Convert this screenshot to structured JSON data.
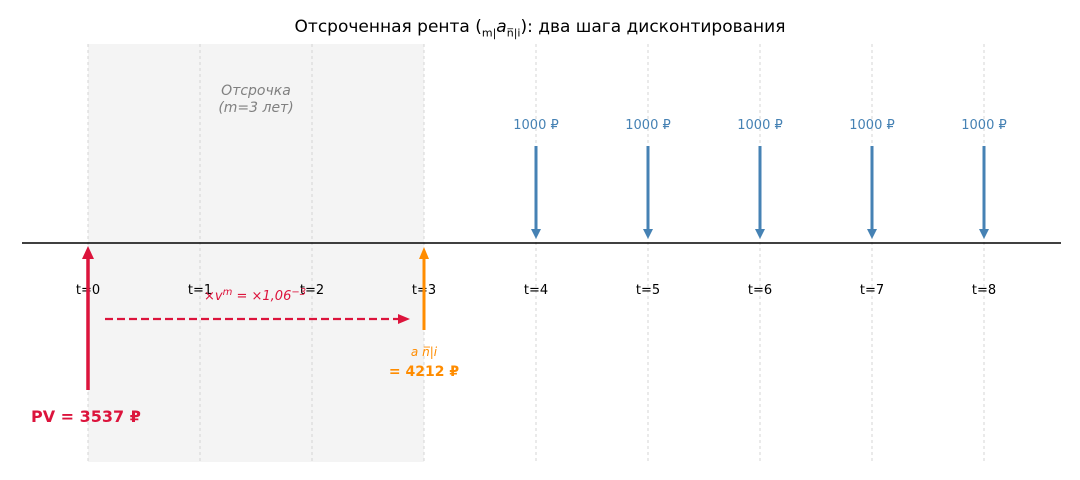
{
  "title": {
    "prefix": "Отсроченная рента (",
    "sub_m": "m|",
    "a": "a",
    "sub_n": "n̅|i",
    "suffix": "): два шага дисконтирования"
  },
  "deferral_label_line1": "Отсрочка",
  "deferral_label_line2": "(m=3 лет)",
  "discount_label": "×v^m = ×1,06^−3",
  "annuity_symbol": "a n̅|i",
  "annuity_value_label": "= 4212 ₽",
  "pv_label": "PV = 3537 ₽",
  "colors": {
    "payment": "#4682b4",
    "pv": "#dc143c",
    "annuity": "#ff8c00",
    "deferral_band": "#f4f4f4",
    "grid": "#cccccc"
  },
  "chart_data": {
    "type": "timeline",
    "times": [
      {
        "t": 0,
        "label": "t=0"
      },
      {
        "t": 1,
        "label": "t=1"
      },
      {
        "t": 2,
        "label": "t=2"
      },
      {
        "t": 3,
        "label": "t=3"
      },
      {
        "t": 4,
        "label": "t=4"
      },
      {
        "t": 5,
        "label": "t=5"
      },
      {
        "t": 6,
        "label": "t=6"
      },
      {
        "t": 7,
        "label": "t=7"
      },
      {
        "t": 8,
        "label": "t=8"
      }
    ],
    "payments": [
      {
        "t": 4,
        "amount": 1000,
        "label": "1000 ₽"
      },
      {
        "t": 5,
        "amount": 1000,
        "label": "1000 ₽"
      },
      {
        "t": 6,
        "amount": 1000,
        "label": "1000 ₽"
      },
      {
        "t": 7,
        "amount": 1000,
        "label": "1000 ₽"
      },
      {
        "t": 8,
        "amount": 1000,
        "label": "1000 ₽"
      }
    ],
    "deferral_years": 3,
    "rate": 0.06,
    "annuity_value_at_t3": 4212,
    "present_value_at_t0": 3537
  }
}
